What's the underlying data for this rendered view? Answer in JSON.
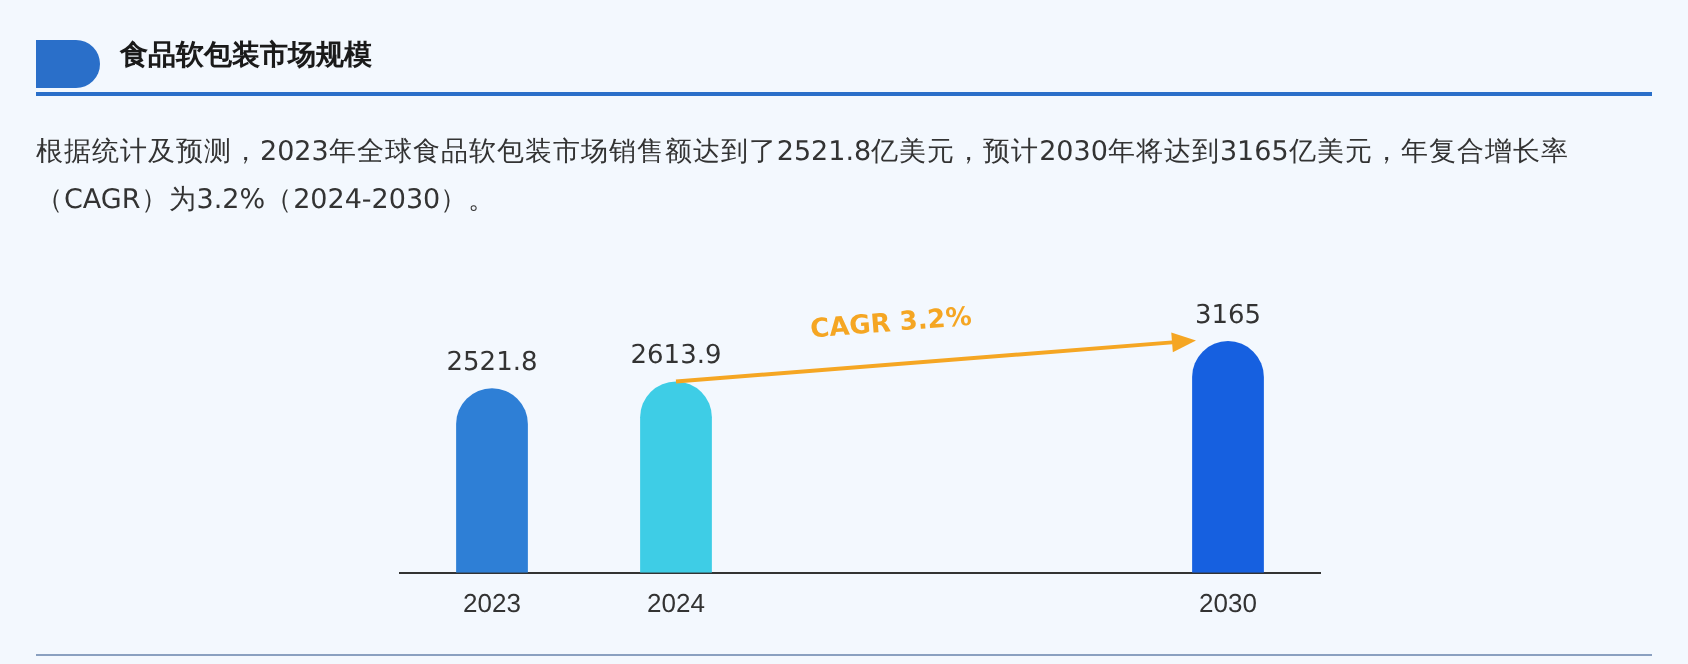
{
  "chart_data": {
    "type": "bar",
    "title": "食品软包装市场规模",
    "subtitle": "根据统计及预测，2023年全球食品软包装市场销售额达到了2521.8亿美元，预计2030年将达到3165亿美元，年复合增长率（CAGR）为3.2%（2024-2030）。",
    "categories": [
      "2023",
      "2024",
      null,
      null,
      "2030"
    ],
    "values": [
      2521.8,
      2613.9,
      null,
      null,
      3165
    ],
    "colors": [
      "#2e7fd6",
      "#3ecde6",
      "#2e7fd6",
      "#2e7fd6",
      "#1660e0"
    ],
    "data_labels": true,
    "grid": false,
    "legend": false,
    "annotations": [
      "CAGR 3.2%"
    ]
  }
}
